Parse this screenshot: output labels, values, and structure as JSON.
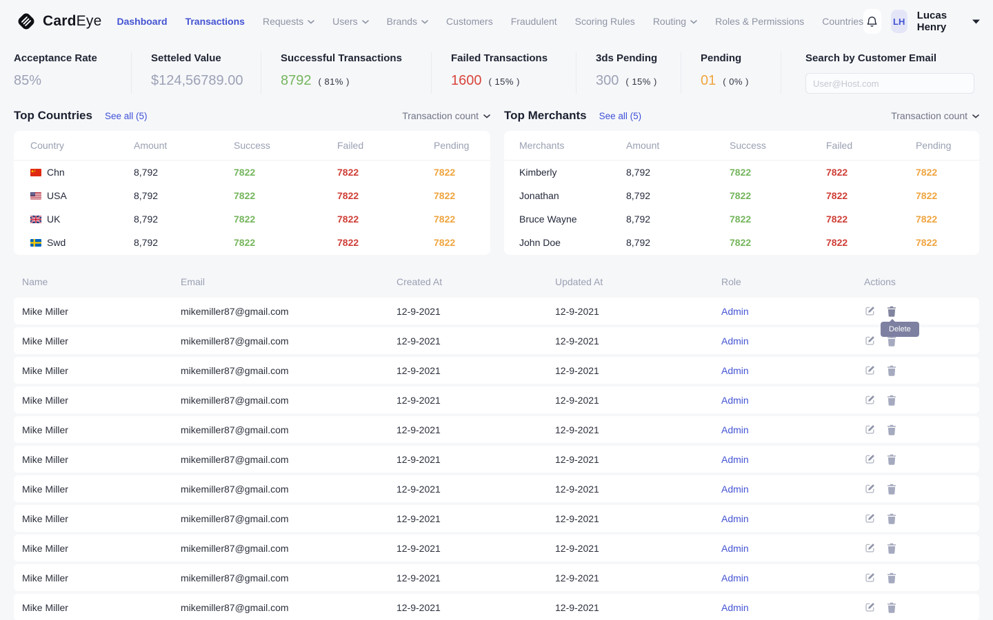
{
  "brand": {
    "bold": "Card",
    "light": "Eye"
  },
  "nav": {
    "items": [
      {
        "label": "Dashboard",
        "state": "active"
      },
      {
        "label": "Transactions",
        "state": "active"
      },
      {
        "label": "Requests",
        "dropdown": true
      },
      {
        "label": "Users",
        "dropdown": true
      },
      {
        "label": "Brands",
        "dropdown": true
      },
      {
        "label": "Customers"
      },
      {
        "label": "Fraudulent"
      },
      {
        "label": "Scoring Rules"
      },
      {
        "label": "Routing",
        "dropdown": true
      },
      {
        "label": "Roles & Permissions"
      },
      {
        "label": "Countries"
      }
    ]
  },
  "user": {
    "initials": "LH",
    "name": "Lucas Henry"
  },
  "stats": [
    {
      "label": "Acceptance Rate",
      "value": "85%",
      "tone": "muted"
    },
    {
      "label": "Setteled Value",
      "value": "$124,56789.00",
      "tone": "muted"
    },
    {
      "label": "Successful Transactions",
      "value": "8792",
      "suffix": "( 81% )",
      "tone": "green"
    },
    {
      "label": "Failed Transactions",
      "value": "1600",
      "suffix": "( 15% )",
      "tone": "red"
    },
    {
      "label": "3ds Pending",
      "value": "300",
      "suffix": "( 15% )",
      "tone": "muted"
    },
    {
      "label": "Pending",
      "value": "01",
      "suffix": "( 0% )",
      "tone": "orange"
    }
  ],
  "search": {
    "label": "Search by Customer Email",
    "placeholder": "User@Host.com"
  },
  "top_countries": {
    "title": "Top Countries",
    "see_all": "See all (5)",
    "sort_label": "Transaction count",
    "headers": [
      "Country",
      "Amount",
      "Success",
      "Failed",
      "Pending"
    ],
    "rows": [
      {
        "flag": "china-flag",
        "name": "Chn",
        "amount": "8,792",
        "success": "7822",
        "failed": "7822",
        "pending": "7822"
      },
      {
        "flag": "usa-flag",
        "name": "USA",
        "amount": "8,792",
        "success": "7822",
        "failed": "7822",
        "pending": "7822"
      },
      {
        "flag": "uk-flag",
        "name": "UK",
        "amount": "8,792",
        "success": "7822",
        "failed": "7822",
        "pending": "7822"
      },
      {
        "flag": "sweden-flag",
        "name": "Swd",
        "amount": "8,792",
        "success": "7822",
        "failed": "7822",
        "pending": "7822"
      }
    ]
  },
  "top_merchants": {
    "title": "Top Merchants",
    "see_all": "See all (5)",
    "sort_label": "Transaction count",
    "headers": [
      "Merchants",
      "Amount",
      "Success",
      "Failed",
      "Pending"
    ],
    "rows": [
      {
        "name": "Kimberly",
        "amount": "8,792",
        "success": "7822",
        "failed": "7822",
        "pending": "7822"
      },
      {
        "name": "Jonathan",
        "amount": "8,792",
        "success": "7822",
        "failed": "7822",
        "pending": "7822"
      },
      {
        "name": "Bruce Wayne",
        "amount": "8,792",
        "success": "7822",
        "failed": "7822",
        "pending": "7822"
      },
      {
        "name": "John Doe",
        "amount": "8,792",
        "success": "7822",
        "failed": "7822",
        "pending": "7822"
      }
    ]
  },
  "users_table": {
    "headers": [
      "Name",
      "Email",
      "Created At",
      "Updated At",
      "Role",
      "Actions"
    ],
    "tooltip": "Delete",
    "rows": [
      {
        "name": "Mike Miller",
        "email": "mikemiller87@gmail.com",
        "created_at": "12-9-2021",
        "updated_at": "12-9-2021",
        "role": "Admin"
      },
      {
        "name": "Mike Miller",
        "email": "mikemiller87@gmail.com",
        "created_at": "12-9-2021",
        "updated_at": "12-9-2021",
        "role": "Admin"
      },
      {
        "name": "Mike Miller",
        "email": "mikemiller87@gmail.com",
        "created_at": "12-9-2021",
        "updated_at": "12-9-2021",
        "role": "Admin"
      },
      {
        "name": "Mike Miller",
        "email": "mikemiller87@gmail.com",
        "created_at": "12-9-2021",
        "updated_at": "12-9-2021",
        "role": "Admin"
      },
      {
        "name": "Mike Miller",
        "email": "mikemiller87@gmail.com",
        "created_at": "12-9-2021",
        "updated_at": "12-9-2021",
        "role": "Admin"
      },
      {
        "name": "Mike Miller",
        "email": "mikemiller87@gmail.com",
        "created_at": "12-9-2021",
        "updated_at": "12-9-2021",
        "role": "Admin"
      },
      {
        "name": "Mike Miller",
        "email": "mikemiller87@gmail.com",
        "created_at": "12-9-2021",
        "updated_at": "12-9-2021",
        "role": "Admin"
      },
      {
        "name": "Mike Miller",
        "email": "mikemiller87@gmail.com",
        "created_at": "12-9-2021",
        "updated_at": "12-9-2021",
        "role": "Admin"
      },
      {
        "name": "Mike Miller",
        "email": "mikemiller87@gmail.com",
        "created_at": "12-9-2021",
        "updated_at": "12-9-2021",
        "role": "Admin"
      },
      {
        "name": "Mike Miller",
        "email": "mikemiller87@gmail.com",
        "created_at": "12-9-2021",
        "updated_at": "12-9-2021",
        "role": "Admin"
      },
      {
        "name": "Mike Miller",
        "email": "mikemiller87@gmail.com",
        "created_at": "12-9-2021",
        "updated_at": "12-9-2021",
        "role": "Admin"
      }
    ]
  },
  "colors": {
    "accent_indigo": "#4353d2",
    "success_green": "#74b55c",
    "failed_red": "#cf3e36",
    "pending_orange": "#efa43e",
    "muted_value": "#9ca1b6",
    "tooltip_bg": "#7d80a0",
    "page_bg": "#f6f7f9"
  }
}
